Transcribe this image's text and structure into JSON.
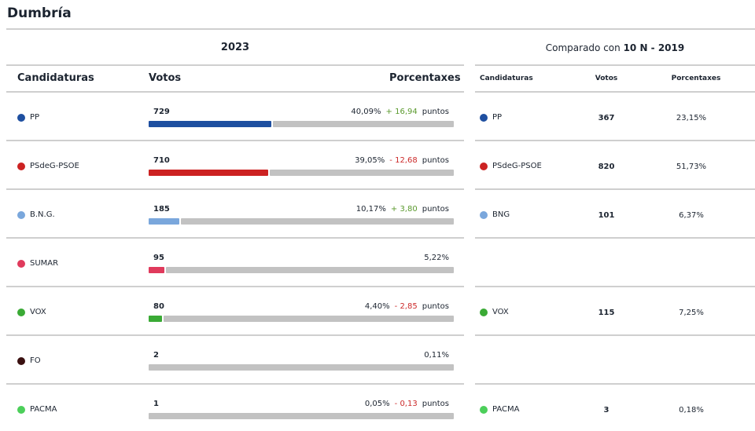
{
  "title": "Dumbría",
  "year_label": "2023",
  "compared_prefix": "Comparado con",
  "compared_election": "10 N - 2019",
  "headers": {
    "candidaturas": "Candidaturas",
    "votos": "Votos",
    "porcentaxes": "Porcentaxes"
  },
  "points_label": "puntos",
  "chart_data": {
    "type": "bar",
    "categories": [
      "PP",
      "PSdeG-PSOE",
      "B.N.G.",
      "SUMAR",
      "VOX",
      "FO",
      "PACMA"
    ],
    "votes": [
      "729",
      "710",
      "185",
      "95",
      "80",
      "2",
      "1"
    ],
    "percentages": [
      "40,09%",
      "39,05%",
      "10,17%",
      "5,22%",
      "4,40%",
      "0,11%",
      "0,05%"
    ],
    "share": [
      40.09,
      39.05,
      10.17,
      5.22,
      4.4,
      0.11,
      0.05
    ],
    "diffs": [
      "+ 16,94",
      "- 12,68",
      "+ 3,80",
      "",
      "- 2,85",
      "",
      "- 0,13"
    ],
    "colors": [
      "#1e4fa0",
      "#cc2222",
      "#7aa7dc",
      "#e03a5c",
      "#3aaa35",
      "#3a1010",
      "#4ccf5a"
    ],
    "positive_color": "#5b9a2e",
    "negative_color": "#cc2a2a",
    "comparison": [
      {
        "name": "PP",
        "votes": "367",
        "pct": "23,15%",
        "color": "#1e4fa0"
      },
      {
        "name": "PSdeG-PSOE",
        "votes": "820",
        "pct": "51,73%",
        "color": "#cc2222"
      },
      {
        "name": "BNG",
        "votes": "101",
        "pct": "6,37%",
        "color": "#7aa7dc"
      },
      null,
      {
        "name": "VOX",
        "votes": "115",
        "pct": "7,25%",
        "color": "#3aaa35"
      },
      null,
      {
        "name": "PACMA",
        "votes": "3",
        "pct": "0,18%",
        "color": "#4ccf5a"
      }
    ]
  }
}
